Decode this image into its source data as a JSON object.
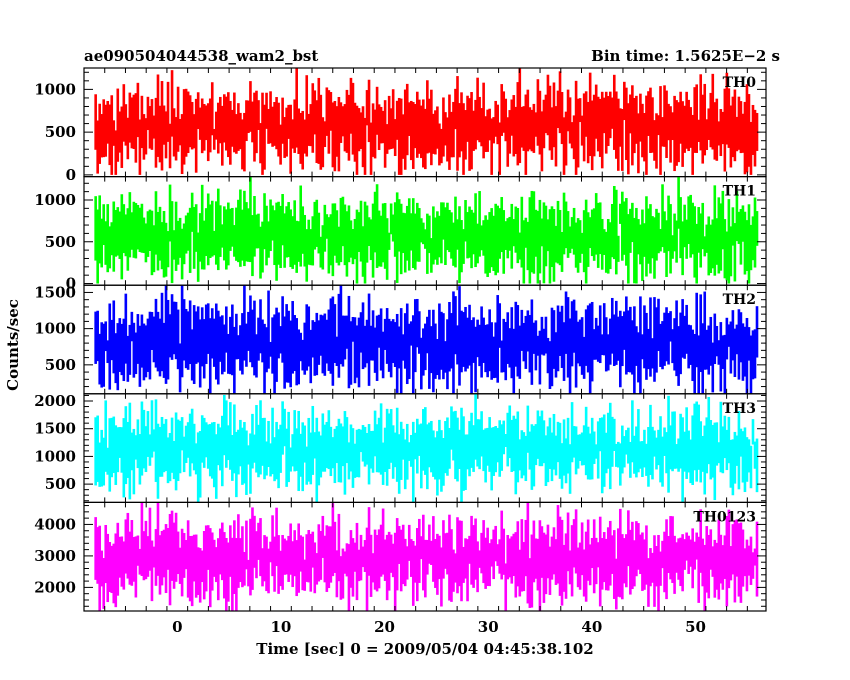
{
  "header": {
    "source_name": "ae090504044538_wam2_bst",
    "bin_time": "Bin time: 1.5625E−2 s"
  },
  "chart_data": {
    "type": "line",
    "title": "ae090504044538_wam2_bst",
    "subtitle": "Bin time: 1.5625E−2 s",
    "xlabel": "Time [sec] 0 = 2009/05/04 04:45:38.102",
    "ylabel": "Counts/sec",
    "xlim": [
      -9,
      56.8
    ],
    "x_ticks": [
      0,
      10,
      20,
      30,
      40,
      50
    ],
    "data_x_range": [
      -8,
      56
    ],
    "bin_time_sec": 0.015625,
    "grid": false,
    "panels": [
      {
        "name": "TH0",
        "color": "#ff0000",
        "ylim": [
          -20,
          1250
        ],
        "y_ticks": [
          0,
          500,
          1000
        ],
        "mean": 560,
        "noise_sd": 240,
        "min_clip": 0,
        "max_clip": 1250
      },
      {
        "name": "TH1",
        "color": "#00ff00",
        "ylim": [
          -20,
          1280
        ],
        "y_ticks": [
          0,
          500,
          1000
        ],
        "mean": 560,
        "noise_sd": 230,
        "min_clip": 0,
        "max_clip": 1280
      },
      {
        "name": "TH2",
        "color": "#0000ff",
        "ylim": [
          100,
          1600
        ],
        "y_ticks": [
          500,
          1000,
          1500
        ],
        "mean": 800,
        "noise_sd": 290,
        "min_clip": 100,
        "max_clip": 1600
      },
      {
        "name": "TH3",
        "color": "#00ffff",
        "ylim": [
          170,
          2130
        ],
        "y_ticks": [
          500,
          1000,
          1500,
          2000
        ],
        "mean": 1150,
        "noise_sd": 340,
        "min_clip": 170,
        "max_clip": 2130
      },
      {
        "name": "TH0123",
        "color": "#ff00ff",
        "ylim": [
          1250,
          4700
        ],
        "y_ticks": [
          2000,
          3000,
          4000
        ],
        "mean": 2900,
        "noise_sd": 620,
        "min_clip": 1250,
        "max_clip": 4700
      }
    ]
  }
}
